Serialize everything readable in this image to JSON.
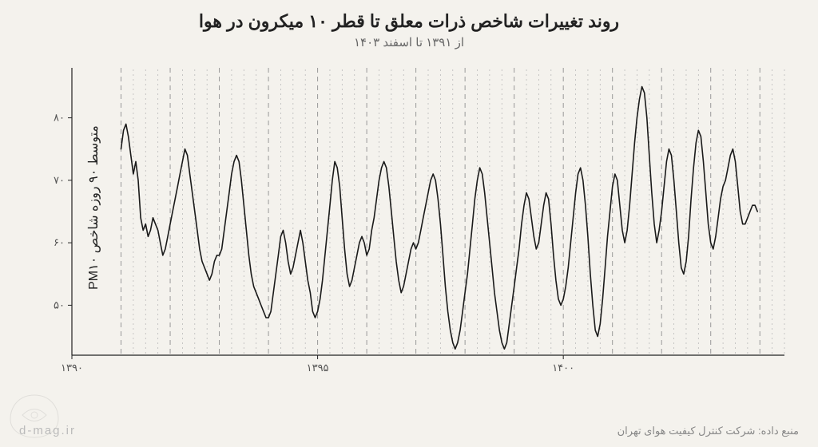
{
  "title": "روند تغییرات شاخص ذرات معلق تا قطر ۱۰ میکرون در هوا",
  "subtitle": "از ۱۳۹۱ تا اسفند ۱۴۰۳",
  "ylabel": "متوسط ۹۰ روزه شاخص PM۱۰",
  "source": "منبع داده: شرکت کنترل کیفیت هوای تهران",
  "watermark": "d-mag.ir",
  "chart": {
    "type": "line",
    "xlim": [
      1390,
      1404.5
    ],
    "ylim": [
      42,
      88
    ],
    "yticks": [
      50,
      60,
      70,
      80
    ],
    "xticks": [
      1390,
      1395,
      1400
    ],
    "ytick_labels": [
      "۵۰",
      "۶۰",
      "۷۰",
      "۸۰"
    ],
    "xtick_labels": [
      "۱۳۹۰",
      "۱۳۹۵",
      "۱۴۰۰"
    ],
    "year_gridlines": [
      1391,
      1392,
      1393,
      1394,
      1395,
      1396,
      1397,
      1398,
      1399,
      1400,
      1401,
      1402,
      1403,
      1404
    ],
    "minor_gridlines_per_year": 3,
    "background_color": "#f4f2ed",
    "axis_color": "#222222",
    "grid_major_color": "#999999",
    "grid_major_dash": "6,5",
    "grid_minor_color": "#bbbbbb",
    "grid_minor_dash": "2,4",
    "line_color": "#1a1a1a",
    "line_width": 1.6,
    "tick_fontsize": 13,
    "tick_color": "#555555",
    "title_fontsize": 22,
    "subtitle_fontsize": 15,
    "ylabel_fontsize": 16,
    "data": [
      [
        1391.0,
        75
      ],
      [
        1391.05,
        78
      ],
      [
        1391.1,
        79
      ],
      [
        1391.15,
        77
      ],
      [
        1391.2,
        74
      ],
      [
        1391.25,
        71
      ],
      [
        1391.3,
        73
      ],
      [
        1391.35,
        70
      ],
      [
        1391.4,
        64
      ],
      [
        1391.45,
        62
      ],
      [
        1391.5,
        63
      ],
      [
        1391.55,
        61
      ],
      [
        1391.6,
        62
      ],
      [
        1391.65,
        64
      ],
      [
        1391.7,
        63
      ],
      [
        1391.75,
        62
      ],
      [
        1391.8,
        60
      ],
      [
        1391.85,
        58
      ],
      [
        1391.9,
        59
      ],
      [
        1391.95,
        61
      ],
      [
        1392.0,
        63
      ],
      [
        1392.05,
        65
      ],
      [
        1392.1,
        67
      ],
      [
        1392.15,
        69
      ],
      [
        1392.2,
        71
      ],
      [
        1392.25,
        73
      ],
      [
        1392.3,
        75
      ],
      [
        1392.35,
        74
      ],
      [
        1392.4,
        71
      ],
      [
        1392.45,
        68
      ],
      [
        1392.5,
        65
      ],
      [
        1392.55,
        62
      ],
      [
        1392.6,
        59
      ],
      [
        1392.65,
        57
      ],
      [
        1392.7,
        56
      ],
      [
        1392.75,
        55
      ],
      [
        1392.8,
        54
      ],
      [
        1392.85,
        55
      ],
      [
        1392.9,
        57
      ],
      [
        1392.95,
        58
      ],
      [
        1393.0,
        58
      ],
      [
        1393.05,
        59
      ],
      [
        1393.1,
        62
      ],
      [
        1393.15,
        65
      ],
      [
        1393.2,
        68
      ],
      [
        1393.25,
        71
      ],
      [
        1393.3,
        73
      ],
      [
        1393.35,
        74
      ],
      [
        1393.4,
        73
      ],
      [
        1393.45,
        70
      ],
      [
        1393.5,
        66
      ],
      [
        1393.55,
        62
      ],
      [
        1393.6,
        58
      ],
      [
        1393.65,
        55
      ],
      [
        1393.7,
        53
      ],
      [
        1393.75,
        52
      ],
      [
        1393.8,
        51
      ],
      [
        1393.85,
        50
      ],
      [
        1393.9,
        49
      ],
      [
        1393.95,
        48
      ],
      [
        1394.0,
        48
      ],
      [
        1394.05,
        49
      ],
      [
        1394.1,
        52
      ],
      [
        1394.15,
        55
      ],
      [
        1394.2,
        58
      ],
      [
        1394.25,
        61
      ],
      [
        1394.3,
        62
      ],
      [
        1394.35,
        60
      ],
      [
        1394.4,
        57
      ],
      [
        1394.45,
        55
      ],
      [
        1394.5,
        56
      ],
      [
        1394.55,
        58
      ],
      [
        1394.6,
        60
      ],
      [
        1394.65,
        62
      ],
      [
        1394.7,
        60
      ],
      [
        1394.75,
        57
      ],
      [
        1394.8,
        54
      ],
      [
        1394.85,
        52
      ],
      [
        1394.9,
        49
      ],
      [
        1394.95,
        48
      ],
      [
        1395.0,
        49
      ],
      [
        1395.05,
        51
      ],
      [
        1395.1,
        54
      ],
      [
        1395.15,
        58
      ],
      [
        1395.2,
        62
      ],
      [
        1395.25,
        66
      ],
      [
        1395.3,
        70
      ],
      [
        1395.35,
        73
      ],
      [
        1395.4,
        72
      ],
      [
        1395.45,
        69
      ],
      [
        1395.5,
        64
      ],
      [
        1395.55,
        59
      ],
      [
        1395.6,
        55
      ],
      [
        1395.65,
        53
      ],
      [
        1395.7,
        54
      ],
      [
        1395.75,
        56
      ],
      [
        1395.8,
        58
      ],
      [
        1395.85,
        60
      ],
      [
        1395.9,
        61
      ],
      [
        1395.95,
        60
      ],
      [
        1396.0,
        58
      ],
      [
        1396.05,
        59
      ],
      [
        1396.1,
        62
      ],
      [
        1396.15,
        64
      ],
      [
        1396.2,
        67
      ],
      [
        1396.25,
        70
      ],
      [
        1396.3,
        72
      ],
      [
        1396.35,
        73
      ],
      [
        1396.4,
        72
      ],
      [
        1396.45,
        69
      ],
      [
        1396.5,
        65
      ],
      [
        1396.55,
        61
      ],
      [
        1396.6,
        57
      ],
      [
        1396.65,
        54
      ],
      [
        1396.7,
        52
      ],
      [
        1396.75,
        53
      ],
      [
        1396.8,
        55
      ],
      [
        1396.85,
        57
      ],
      [
        1396.9,
        59
      ],
      [
        1396.95,
        60
      ],
      [
        1397.0,
        59
      ],
      [
        1397.05,
        60
      ],
      [
        1397.1,
        62
      ],
      [
        1397.15,
        64
      ],
      [
        1397.2,
        66
      ],
      [
        1397.25,
        68
      ],
      [
        1397.3,
        70
      ],
      [
        1397.35,
        71
      ],
      [
        1397.4,
        70
      ],
      [
        1397.45,
        67
      ],
      [
        1397.5,
        63
      ],
      [
        1397.55,
        58
      ],
      [
        1397.6,
        53
      ],
      [
        1397.65,
        49
      ],
      [
        1397.7,
        46
      ],
      [
        1397.75,
        44
      ],
      [
        1397.8,
        43
      ],
      [
        1397.85,
        44
      ],
      [
        1397.9,
        46
      ],
      [
        1397.95,
        49
      ],
      [
        1398.0,
        52
      ],
      [
        1398.05,
        55
      ],
      [
        1398.1,
        59
      ],
      [
        1398.15,
        63
      ],
      [
        1398.2,
        67
      ],
      [
        1398.25,
        70
      ],
      [
        1398.3,
        72
      ],
      [
        1398.35,
        71
      ],
      [
        1398.4,
        68
      ],
      [
        1398.45,
        64
      ],
      [
        1398.5,
        60
      ],
      [
        1398.55,
        56
      ],
      [
        1398.6,
        52
      ],
      [
        1398.65,
        49
      ],
      [
        1398.7,
        46
      ],
      [
        1398.75,
        44
      ],
      [
        1398.8,
        43
      ],
      [
        1398.85,
        44
      ],
      [
        1398.9,
        47
      ],
      [
        1398.95,
        50
      ],
      [
        1399.0,
        53
      ],
      [
        1399.05,
        56
      ],
      [
        1399.1,
        59
      ],
      [
        1399.15,
        63
      ],
      [
        1399.2,
        66
      ],
      [
        1399.25,
        68
      ],
      [
        1399.3,
        67
      ],
      [
        1399.35,
        64
      ],
      [
        1399.4,
        61
      ],
      [
        1399.45,
        59
      ],
      [
        1399.5,
        60
      ],
      [
        1399.55,
        63
      ],
      [
        1399.6,
        66
      ],
      [
        1399.65,
        68
      ],
      [
        1399.7,
        67
      ],
      [
        1399.75,
        63
      ],
      [
        1399.8,
        58
      ],
      [
        1399.85,
        54
      ],
      [
        1399.9,
        51
      ],
      [
        1399.95,
        50
      ],
      [
        1400.0,
        51
      ],
      [
        1400.05,
        53
      ],
      [
        1400.1,
        56
      ],
      [
        1400.15,
        60
      ],
      [
        1400.2,
        64
      ],
      [
        1400.25,
        68
      ],
      [
        1400.3,
        71
      ],
      [
        1400.35,
        72
      ],
      [
        1400.4,
        70
      ],
      [
        1400.45,
        66
      ],
      [
        1400.5,
        61
      ],
      [
        1400.55,
        55
      ],
      [
        1400.6,
        50
      ],
      [
        1400.65,
        46
      ],
      [
        1400.7,
        45
      ],
      [
        1400.75,
        47
      ],
      [
        1400.8,
        51
      ],
      [
        1400.85,
        56
      ],
      [
        1400.9,
        61
      ],
      [
        1400.95,
        65
      ],
      [
        1401.0,
        69
      ],
      [
        1401.05,
        71
      ],
      [
        1401.1,
        70
      ],
      [
        1401.15,
        66
      ],
      [
        1401.2,
        62
      ],
      [
        1401.25,
        60
      ],
      [
        1401.3,
        62
      ],
      [
        1401.35,
        66
      ],
      [
        1401.4,
        71
      ],
      [
        1401.45,
        76
      ],
      [
        1401.5,
        80
      ],
      [
        1401.55,
        83
      ],
      [
        1401.6,
        85
      ],
      [
        1401.65,
        84
      ],
      [
        1401.7,
        80
      ],
      [
        1401.75,
        74
      ],
      [
        1401.8,
        68
      ],
      [
        1401.85,
        63
      ],
      [
        1401.9,
        60
      ],
      [
        1401.95,
        62
      ],
      [
        1402.0,
        65
      ],
      [
        1402.05,
        69
      ],
      [
        1402.1,
        73
      ],
      [
        1402.15,
        75
      ],
      [
        1402.2,
        74
      ],
      [
        1402.25,
        70
      ],
      [
        1402.3,
        65
      ],
      [
        1402.35,
        60
      ],
      [
        1402.4,
        56
      ],
      [
        1402.45,
        55
      ],
      [
        1402.5,
        57
      ],
      [
        1402.55,
        61
      ],
      [
        1402.6,
        67
      ],
      [
        1402.65,
        72
      ],
      [
        1402.7,
        76
      ],
      [
        1402.75,
        78
      ],
      [
        1402.8,
        77
      ],
      [
        1402.85,
        73
      ],
      [
        1402.9,
        68
      ],
      [
        1402.95,
        63
      ],
      [
        1403.0,
        60
      ],
      [
        1403.05,
        59
      ],
      [
        1403.1,
        61
      ],
      [
        1403.15,
        64
      ],
      [
        1403.2,
        67
      ],
      [
        1403.25,
        69
      ],
      [
        1403.3,
        70
      ],
      [
        1403.35,
        72
      ],
      [
        1403.4,
        74
      ],
      [
        1403.45,
        75
      ],
      [
        1403.5,
        73
      ],
      [
        1403.55,
        69
      ],
      [
        1403.6,
        65
      ],
      [
        1403.65,
        63
      ],
      [
        1403.7,
        63
      ],
      [
        1403.75,
        64
      ],
      [
        1403.8,
        65
      ],
      [
        1403.85,
        66
      ],
      [
        1403.9,
        66
      ],
      [
        1403.95,
        65
      ]
    ]
  }
}
